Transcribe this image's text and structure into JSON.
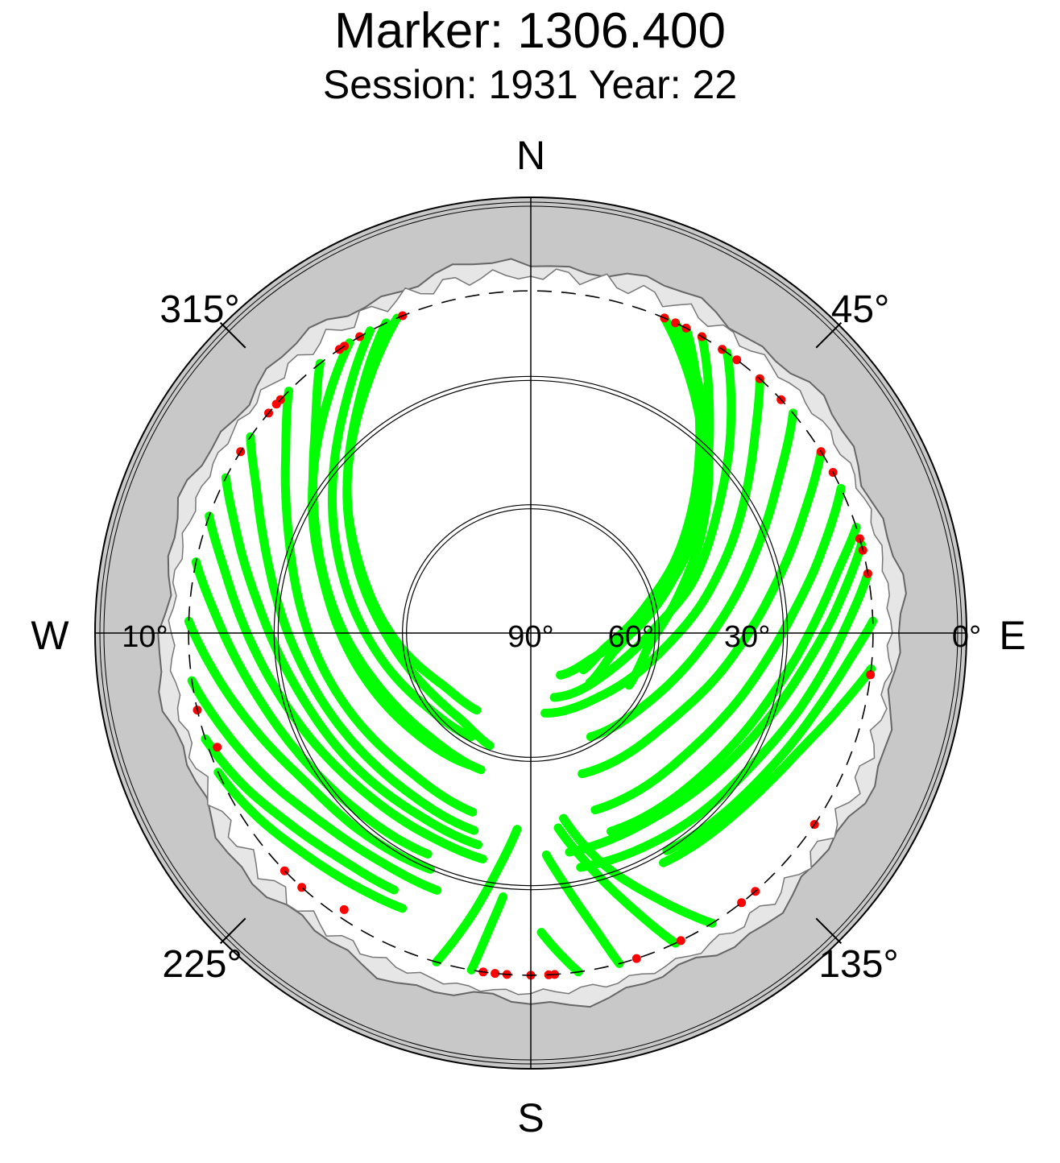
{
  "header": {
    "title": "Marker: 1306.400",
    "subtitle": "Session: 1931 Year: 22"
  },
  "colors": {
    "track": "#00ff00",
    "endpoint": "#ff0000",
    "outer_ring": "#c8c8c8",
    "mask": "#e6e6e6",
    "sky": "#ffffff",
    "grid": "#000000"
  },
  "chart_data": {
    "type": "scatter",
    "projection": "polar-skyplot",
    "title": "Marker: 1306.400",
    "subtitle": "Session: 1931 Year: 22",
    "cardinal_labels": {
      "north": "N",
      "east": "E",
      "south": "S",
      "west": "W"
    },
    "azimuth_tick_labels": [
      {
        "az": 45,
        "label": "45°"
      },
      {
        "az": 135,
        "label": "135°"
      },
      {
        "az": 225,
        "label": "225°"
      },
      {
        "az": 315,
        "label": "315°"
      }
    ],
    "elevation_tick_labels": [
      {
        "el": 0,
        "label": "0°"
      },
      {
        "el": 30,
        "label": "30°"
      },
      {
        "el": 60,
        "label": "60°"
      },
      {
        "el": 90,
        "label": "90°"
      },
      {
        "el": 10,
        "label": "10°"
      }
    ],
    "elevation_circles": [
      10,
      30,
      60
    ],
    "elevation_cutoff": 10,
    "elevation_range": [
      0,
      90
    ],
    "tracks": [
      {
        "az": [
          23,
          36,
          51,
          64,
          80,
          102,
          130
        ],
        "el": [
          10,
          24,
          38,
          50,
          62,
          70,
          72
        ]
      },
      {
        "az": [
          25,
          36,
          48,
          60,
          75,
          95,
          118
        ],
        "el": [
          10,
          22,
          34,
          44,
          54,
          62,
          64
        ]
      },
      {
        "az": [
          27,
          38,
          50,
          63,
          78,
          100,
          125
        ],
        "el": [
          10,
          26,
          40,
          52,
          63,
          72,
          75
        ]
      },
      {
        "az": [
          30,
          40,
          52,
          66,
          85,
          110,
          145
        ],
        "el": [
          10,
          25,
          39,
          52,
          64,
          74,
          78
        ]
      },
      {
        "az": [
          35,
          45,
          57,
          72,
          90,
          118,
          160
        ],
        "el": [
          10,
          24,
          38,
          50,
          62,
          70,
          74
        ]
      },
      {
        "az": [
          42,
          50,
          62,
          78,
          100,
          132,
          170
        ],
        "el": [
          10,
          22,
          35,
          48,
          60,
          68,
          71
        ]
      },
      {
        "az": [
          50,
          60,
          75,
          95,
          120,
          150
        ],
        "el": [
          10,
          24,
          38,
          50,
          58,
          62
        ]
      },
      {
        "az": [
          58,
          68,
          82,
          100,
          125,
          160
        ],
        "el": [
          10,
          22,
          34,
          44,
          52,
          55
        ]
      },
      {
        "az": [
          65,
          75,
          88,
          105,
          128,
          160
        ],
        "el": [
          10,
          20,
          30,
          38,
          44,
          46
        ]
      },
      {
        "az": [
          72,
          80,
          92,
          108,
          130,
          158
        ],
        "el": [
          10,
          18,
          26,
          33,
          38,
          40
        ]
      },
      {
        "az": [
          75,
          85,
          100,
          120,
          145,
          170
        ],
        "el": [
          10,
          18,
          27,
          34,
          38,
          38
        ]
      },
      {
        "az": [
          80,
          90,
          104,
          122,
          146,
          168
        ],
        "el": [
          10,
          17,
          24,
          30,
          33,
          34
        ]
      },
      {
        "az": [
          88,
          96,
          108,
          125,
          148
        ],
        "el": [
          10,
          16,
          22,
          27,
          30
        ]
      },
      {
        "az": [
          96,
          104,
          115,
          130,
          150
        ],
        "el": [
          10,
          16,
          22,
          26,
          28
        ]
      },
      {
        "az": [
          337,
          325,
          310,
          292,
          270,
          245,
          220,
          200
        ],
        "el": [
          10,
          22,
          34,
          46,
          56,
          62,
          64,
          62
        ]
      },
      {
        "az": [
          335,
          322,
          306,
          288,
          265,
          240,
          215
        ],
        "el": [
          10,
          24,
          37,
          49,
          59,
          66,
          68
        ]
      },
      {
        "az": [
          332,
          320,
          304,
          285,
          262,
          236,
          210
        ],
        "el": [
          10,
          22,
          34,
          45,
          54,
          60,
          62
        ]
      },
      {
        "az": [
          328,
          316,
          300,
          282,
          258,
          232,
          205
        ],
        "el": [
          10,
          20,
          31,
          41,
          49,
          54,
          56
        ]
      },
      {
        "az": [
          322,
          312,
          296,
          276,
          252,
          226,
          200
        ],
        "el": [
          10,
          22,
          34,
          44,
          52,
          56,
          56
        ]
      },
      {
        "az": [
          315,
          305,
          290,
          270,
          246,
          222,
          198
        ],
        "el": [
          10,
          20,
          30,
          38,
          44,
          47,
          46
        ]
      },
      {
        "az": [
          305,
          296,
          282,
          262,
          240,
          218,
          196
        ],
        "el": [
          10,
          19,
          28,
          36,
          41,
          43,
          42
        ]
      },
      {
        "az": [
          297,
          288,
          274,
          256,
          236,
          214,
          194
        ],
        "el": [
          10,
          18,
          27,
          34,
          38,
          40,
          39
        ]
      },
      {
        "az": [
          290,
          280,
          265,
          248,
          228,
          208,
          192
        ],
        "el": [
          10,
          18,
          26,
          32,
          36,
          37,
          36
        ]
      },
      {
        "az": [
          282,
          272,
          258,
          242,
          224,
          205
        ],
        "el": [
          10,
          17,
          24,
          29,
          32,
          33
        ]
      },
      {
        "az": [
          272,
          262,
          250,
          236,
          220,
          203
        ],
        "el": [
          10,
          16,
          22,
          27,
          29,
          30
        ]
      },
      {
        "az": [
          262,
          252,
          240,
          228,
          214,
          200
        ],
        "el": [
          10,
          15,
          20,
          24,
          26,
          26
        ]
      },
      {
        "az": [
          252,
          242,
          232,
          220,
          208
        ],
        "el": [
          10,
          14,
          18,
          21,
          22
        ]
      },
      {
        "az": [
          246,
          236,
          226,
          215,
          205
        ],
        "el": [
          10,
          13,
          16,
          18,
          19
        ]
      },
      {
        "az": [
          190,
          188,
          186
        ],
        "el": [
          10,
          20,
          28
        ]
      },
      {
        "az": [
          196,
          192,
          188,
          184
        ],
        "el": [
          10,
          22,
          34,
          44
        ]
      },
      {
        "az": [
          172,
          175,
          178
        ],
        "el": [
          10,
          15,
          20
        ]
      },
      {
        "az": [
          165,
          168,
          172,
          176
        ],
        "el": [
          10,
          20,
          30,
          38
        ]
      },
      {
        "az": [
          155,
          160,
          166,
          172
        ],
        "el": [
          10,
          22,
          34,
          44
        ]
      },
      {
        "az": [
          148,
          155,
          163,
          170
        ],
        "el": [
          10,
          22,
          34,
          46
        ]
      }
    ],
    "endpoints": [
      {
        "az": 23,
        "el": 10
      },
      {
        "az": 25,
        "el": 10
      },
      {
        "az": 27,
        "el": 10
      },
      {
        "az": 30,
        "el": 10
      },
      {
        "az": 34,
        "el": 10
      },
      {
        "az": 37,
        "el": 10
      },
      {
        "az": 42,
        "el": 10
      },
      {
        "az": 47,
        "el": 10
      },
      {
        "az": 58,
        "el": 10
      },
      {
        "az": 62,
        "el": 10
      },
      {
        "az": 74,
        "el": 10
      },
      {
        "az": 76,
        "el": 10
      },
      {
        "az": 80,
        "el": 10
      },
      {
        "az": 97,
        "el": 10
      },
      {
        "az": 124,
        "el": 10
      },
      {
        "az": 139,
        "el": 10
      },
      {
        "az": 142,
        "el": 10
      },
      {
        "az": 154,
        "el": 10
      },
      {
        "az": 162,
        "el": 10
      },
      {
        "az": 176,
        "el": 10
      },
      {
        "az": 177,
        "el": 10
      },
      {
        "az": 180,
        "el": 10
      },
      {
        "az": 184,
        "el": 10
      },
      {
        "az": 186,
        "el": 10
      },
      {
        "az": 188,
        "el": 10
      },
      {
        "az": 214,
        "el": 12
      },
      {
        "az": 222,
        "el": 10
      },
      {
        "az": 226,
        "el": 10
      },
      {
        "az": 250,
        "el": 12
      },
      {
        "az": 257,
        "el": 10
      },
      {
        "az": 302,
        "el": 10
      },
      {
        "az": 310,
        "el": 10
      },
      {
        "az": 312,
        "el": 10
      },
      {
        "az": 313,
        "el": 10
      },
      {
        "az": 326,
        "el": 10
      },
      {
        "az": 327,
        "el": 10
      },
      {
        "az": 330,
        "el": 10
      },
      {
        "az": 338,
        "el": 10
      }
    ]
  }
}
